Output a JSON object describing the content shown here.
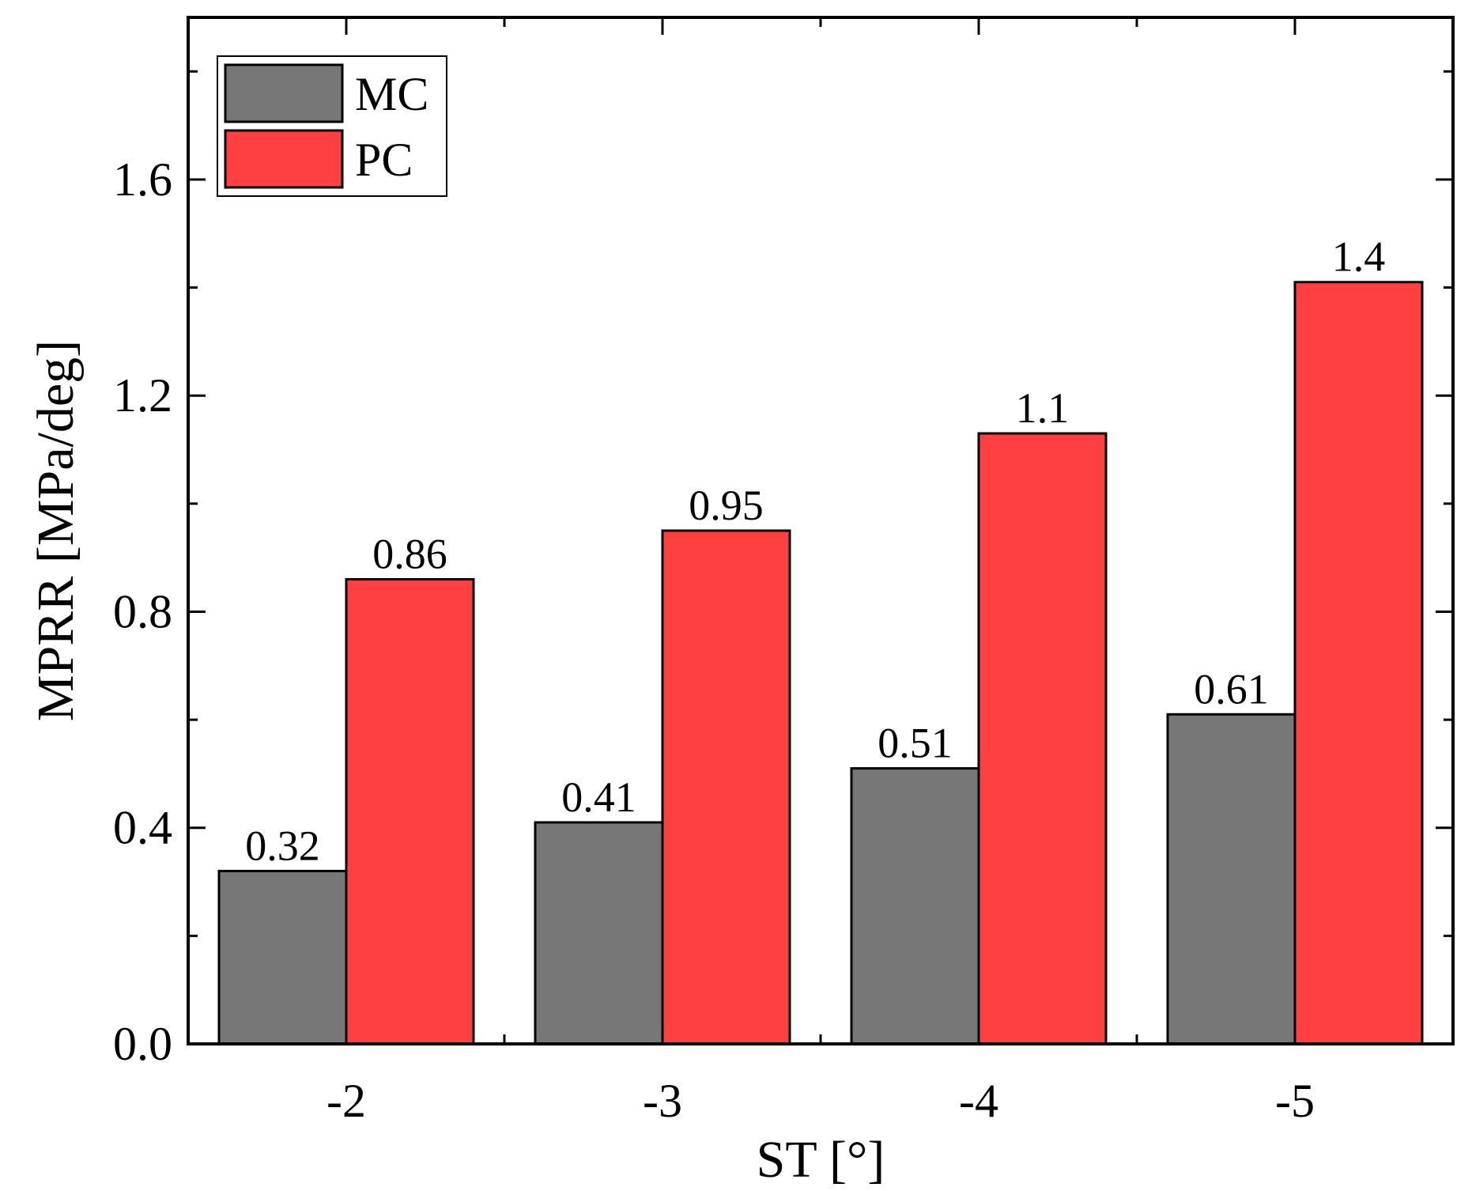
{
  "chart_data": {
    "type": "bar",
    "title": "",
    "xlabel": "ST [°]",
    "ylabel": "MPRR [MPa/deg]",
    "categories": [
      "-2",
      "-3",
      "-4",
      "-5"
    ],
    "series": [
      {
        "name": "MC",
        "color": "#777777",
        "values": [
          0.32,
          0.41,
          0.51,
          0.61
        ],
        "labels": [
          "0.32",
          "0.41",
          "0.51",
          "0.61"
        ]
      },
      {
        "name": "PC",
        "color": "#ff4040",
        "values": [
          0.86,
          0.95,
          1.13,
          1.41
        ],
        "labels": [
          "0.86",
          "0.95",
          "1.1",
          "1.4"
        ]
      }
    ],
    "ylim": [
      0,
      1.9
    ],
    "yticks": [
      "0.0",
      "0.4",
      "0.8",
      "1.2",
      "1.6"
    ],
    "legend": "top-left",
    "grid": false
  }
}
